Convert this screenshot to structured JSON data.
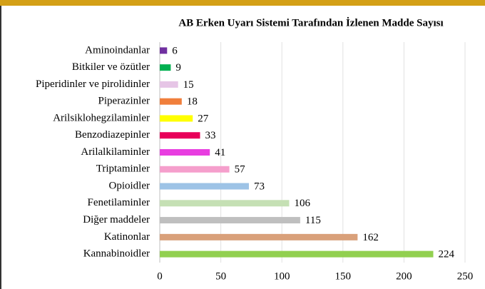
{
  "chart_data": {
    "type": "bar",
    "orientation": "horizontal",
    "title": "AB Erken Uyarı Sistemi Tarafından İzlenen Madde Sayısı",
    "categories": [
      "Aminoindanlar",
      "Bitkiler ve özütler",
      "Piperidinler ve pirolidinler",
      "Piperazinler",
      "Arilsiklohegzilaminler",
      "Benzodiazepinler",
      "Arilalkilaminler",
      "Triptaminler",
      "Opioidler",
      "Fenetilaminler",
      "Diğer maddeler",
      "Katinonlar",
      "Kannabinoidler"
    ],
    "values": [
      6,
      9,
      15,
      18,
      27,
      33,
      41,
      57,
      73,
      106,
      115,
      162,
      224
    ],
    "colors": [
      "#7030a0",
      "#00b050",
      "#e6c5e6",
      "#f07f3c",
      "#ffff00",
      "#e8005a",
      "#e83ee0",
      "#f59fcc",
      "#9dc3e6",
      "#c5e0b4",
      "#bfbfbf",
      "#d9a07a",
      "#92d050"
    ],
    "xlim": [
      0,
      250
    ],
    "xticks": [
      0,
      50,
      100,
      150,
      200,
      250
    ],
    "grid": true
  }
}
